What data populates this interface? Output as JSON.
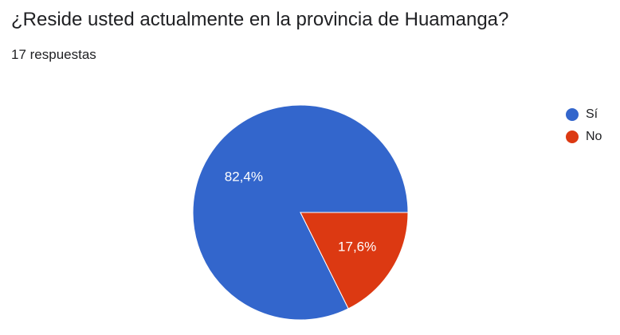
{
  "question": {
    "title": "¿Reside usted actualmente en la provincia de Huamanga?",
    "response_count": "17 respuestas"
  },
  "chart_data": {
    "type": "pie",
    "title": "¿Reside usted actualmente en la provincia de Huamanga?",
    "categories": [
      "Sí",
      "No"
    ],
    "values": [
      14,
      3
    ],
    "data_labels": [
      "82,4%",
      "17,6%"
    ],
    "colors": [
      "#3366cc",
      "#dc3912"
    ],
    "label_color": "#ffffff",
    "legend_placement": "right",
    "start_angle_deg": 90,
    "direction": "counterclockwise"
  }
}
